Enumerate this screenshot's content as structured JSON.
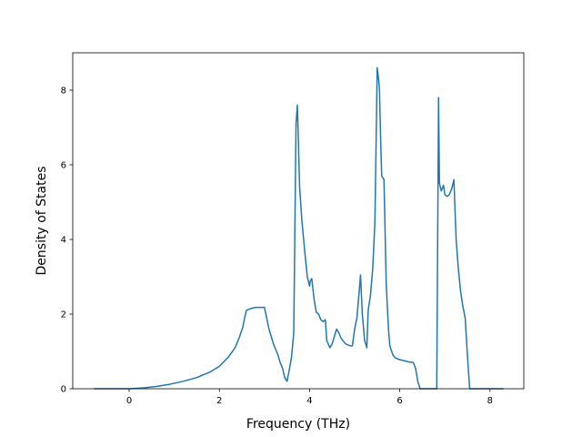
{
  "chart_data": {
    "type": "line",
    "title": "",
    "xlabel": "Frequency (THz)",
    "ylabel": "Density of States",
    "xlim": [
      -1.25,
      8.75
    ],
    "ylim": [
      0,
      9.0
    ],
    "x_ticks": [
      0,
      2,
      4,
      6,
      8
    ],
    "y_ticks": [
      0,
      2,
      4,
      6,
      8
    ],
    "grid": false,
    "legend": "none",
    "line_color": "#1f77b4",
    "series": [
      {
        "x": [
          -0.78,
          -0.5,
          0,
          0.3,
          0.6,
          0.9,
          1.2,
          1.5,
          1.8,
          2.0,
          2.2,
          2.35,
          2.45,
          2.52,
          2.57,
          2.6,
          2.7,
          2.8,
          2.9,
          2.95,
          3.0,
          3.1,
          3.2,
          3.3,
          3.35,
          3.4,
          3.45,
          3.5,
          3.55,
          3.6,
          3.65,
          3.7,
          3.73,
          3.78,
          3.83,
          3.9,
          3.95,
          4.0,
          4.02,
          4.05,
          4.1,
          4.15,
          4.2,
          4.25,
          4.3,
          4.35,
          4.38,
          4.45,
          4.5,
          4.55,
          4.6,
          4.65,
          4.7,
          4.8,
          4.9,
          4.95,
          5.0,
          5.05,
          5.1,
          5.13,
          5.17,
          5.22,
          5.27,
          5.3,
          5.35,
          5.4,
          5.45,
          5.5,
          5.53,
          5.55,
          5.58,
          5.6,
          5.65,
          5.7,
          5.75,
          5.78,
          5.85,
          5.9,
          5.95,
          6.0,
          6.1,
          6.2,
          6.3,
          6.35,
          6.4,
          6.45,
          6.5,
          6.7,
          6.82,
          6.86,
          6.88,
          6.92,
          6.97,
          7.0,
          7.05,
          7.1,
          7.15,
          7.2,
          7.25,
          7.3,
          7.35,
          7.4,
          7.45,
          7.5,
          7.55,
          7.6,
          7.65,
          7.8,
          8.0,
          8.3
        ],
        "y": [
          0,
          0,
          0,
          0.02,
          0.06,
          0.12,
          0.2,
          0.3,
          0.45,
          0.6,
          0.85,
          1.1,
          1.4,
          1.65,
          1.95,
          2.1,
          2.15,
          2.18,
          2.18,
          2.18,
          2.18,
          1.6,
          1.2,
          0.9,
          0.7,
          0.55,
          0.3,
          0.2,
          0.5,
          0.85,
          1.5,
          7.1,
          7.6,
          5.4,
          4.5,
          3.6,
          3.0,
          2.75,
          2.9,
          2.95,
          2.4,
          2.05,
          2.0,
          1.85,
          1.8,
          1.85,
          1.3,
          1.1,
          1.2,
          1.4,
          1.6,
          1.5,
          1.35,
          1.2,
          1.15,
          1.15,
          1.6,
          1.9,
          2.6,
          3.05,
          2.0,
          1.3,
          1.1,
          2.1,
          2.5,
          3.2,
          4.5,
          8.6,
          8.3,
          8.0,
          6.5,
          5.7,
          5.6,
          2.8,
          1.6,
          1.15,
          0.9,
          0.83,
          0.8,
          0.78,
          0.75,
          0.72,
          0.7,
          0.55,
          0.2,
          0,
          0,
          0,
          0,
          7.8,
          5.5,
          5.3,
          5.45,
          5.2,
          5.15,
          5.2,
          5.35,
          5.6,
          4.0,
          3.2,
          2.6,
          2.2,
          1.9,
          0.9,
          0,
          0,
          0,
          0,
          0,
          0
        ]
      }
    ]
  }
}
